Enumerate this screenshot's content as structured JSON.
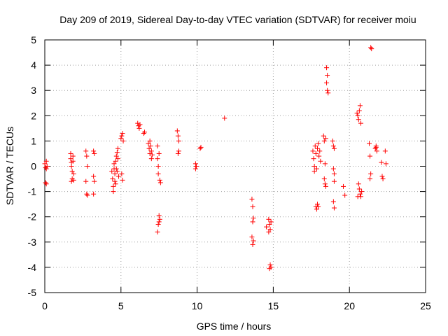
{
  "chart_data": {
    "type": "scatter",
    "title": "Day 209 of 2019, Sidereal Day-to-day VTEC variation (SDTVAR) for receiver moiu",
    "xlabel": "GPS time / hours",
    "ylabel": "SDTVAR / TECUs",
    "xlim": [
      0,
      25
    ],
    "ylim": [
      -5,
      5
    ],
    "xticks": [
      "0",
      "5",
      "10",
      "15",
      "20",
      "25"
    ],
    "yticks": [
      "-5",
      "-4",
      "-3",
      "-2",
      "-1",
      "0",
      "1",
      "2",
      "3",
      "4",
      "5"
    ],
    "grid": true,
    "marker": "+",
    "color": "#ff0000",
    "points": [
      [
        0.0,
        0.1
      ],
      [
        0.05,
        -0.05
      ],
      [
        0.1,
        0.2
      ],
      [
        0.1,
        -0.1
      ],
      [
        0.15,
        0.0
      ],
      [
        0.05,
        -0.65
      ],
      [
        0.1,
        -0.7
      ],
      [
        1.7,
        0.5
      ],
      [
        1.7,
        0.3
      ],
      [
        1.75,
        0.15
      ],
      [
        1.75,
        0.0
      ],
      [
        1.8,
        -0.2
      ],
      [
        1.8,
        -0.5
      ],
      [
        1.75,
        -0.6
      ],
      [
        1.85,
        0.4
      ],
      [
        1.9,
        -0.3
      ],
      [
        1.85,
        0.2
      ],
      [
        1.9,
        -0.55
      ],
      [
        2.7,
        0.6
      ],
      [
        2.75,
        0.4
      ],
      [
        2.8,
        0.0
      ],
      [
        2.7,
        -0.6
      ],
      [
        2.8,
        -1.15
      ],
      [
        2.75,
        -1.1
      ],
      [
        3.2,
        0.6
      ],
      [
        3.25,
        0.5
      ],
      [
        3.2,
        -0.4
      ],
      [
        3.25,
        -0.6
      ],
      [
        3.2,
        -1.1
      ],
      [
        4.4,
        -0.2
      ],
      [
        4.45,
        -0.5
      ],
      [
        4.5,
        -0.8
      ],
      [
        4.5,
        -1.0
      ],
      [
        4.55,
        0.1
      ],
      [
        4.6,
        -0.3
      ],
      [
        4.6,
        -0.6
      ],
      [
        4.65,
        0.2
      ],
      [
        4.7,
        0.4
      ],
      [
        4.7,
        -0.1
      ],
      [
        4.75,
        0.55
      ],
      [
        4.8,
        0.7
      ],
      [
        4.8,
        0.3
      ],
      [
        4.85,
        -0.4
      ],
      [
        4.55,
        -0.1
      ],
      [
        4.65,
        -0.7
      ],
      [
        4.75,
        -0.2
      ],
      [
        5.0,
        1.1
      ],
      [
        5.05,
        1.2
      ],
      [
        5.1,
        1.3
      ],
      [
        5.15,
        1.0
      ],
      [
        5.05,
        -0.3
      ],
      [
        5.1,
        -0.55
      ],
      [
        6.1,
        1.7
      ],
      [
        6.15,
        1.6
      ],
      [
        6.2,
        1.5
      ],
      [
        6.25,
        1.65
      ],
      [
        6.5,
        1.3
      ],
      [
        6.55,
        1.35
      ],
      [
        6.8,
        0.9
      ],
      [
        6.85,
        0.7
      ],
      [
        6.9,
        0.5
      ],
      [
        6.95,
        0.8
      ],
      [
        7.0,
        0.6
      ],
      [
        7.05,
        0.45
      ],
      [
        6.9,
        1.0
      ],
      [
        7.0,
        0.3
      ],
      [
        7.4,
        0.3
      ],
      [
        7.45,
        0.0
      ],
      [
        7.45,
        -0.3
      ],
      [
        7.4,
        0.8
      ],
      [
        7.5,
        0.5
      ],
      [
        7.55,
        -0.55
      ],
      [
        7.6,
        -0.65
      ],
      [
        7.5,
        -1.95
      ],
      [
        7.55,
        -2.1
      ],
      [
        7.45,
        -2.3
      ],
      [
        7.4,
        -2.6
      ],
      [
        7.5,
        -2.2
      ],
      [
        8.7,
        1.4
      ],
      [
        8.75,
        1.2
      ],
      [
        8.8,
        1.0
      ],
      [
        8.75,
        0.5
      ],
      [
        8.8,
        0.6
      ],
      [
        9.9,
        0.1
      ],
      [
        9.95,
        0.0
      ],
      [
        9.9,
        -0.1
      ],
      [
        10.2,
        0.7
      ],
      [
        10.25,
        0.75
      ],
      [
        11.8,
        1.9
      ],
      [
        13.6,
        -1.3
      ],
      [
        13.65,
        -1.6
      ],
      [
        13.7,
        -2.05
      ],
      [
        13.65,
        -2.2
      ],
      [
        13.6,
        -2.8
      ],
      [
        13.7,
        -2.95
      ],
      [
        13.65,
        -3.1
      ],
      [
        14.7,
        -2.1
      ],
      [
        14.75,
        -2.3
      ],
      [
        14.8,
        -2.5
      ],
      [
        14.7,
        -2.6
      ],
      [
        14.85,
        -2.2
      ],
      [
        14.8,
        -3.9
      ],
      [
        14.85,
        -4.0
      ],
      [
        14.75,
        -4.05
      ],
      [
        14.55,
        -2.4
      ],
      [
        17.6,
        0.6
      ],
      [
        17.65,
        0.3
      ],
      [
        17.7,
        0.0
      ],
      [
        17.7,
        -0.2
      ],
      [
        17.75,
        0.8
      ],
      [
        17.8,
        0.5
      ],
      [
        17.85,
        -0.1
      ],
      [
        17.9,
        0.7
      ],
      [
        17.95,
        0.9
      ],
      [
        18.0,
        0.4
      ],
      [
        18.05,
        0.6
      ],
      [
        18.1,
        0.2
      ],
      [
        17.8,
        -1.6
      ],
      [
        17.85,
        -1.7
      ],
      [
        17.9,
        -1.5
      ],
      [
        17.95,
        -1.6
      ],
      [
        18.3,
        1.2
      ],
      [
        18.35,
        1.0
      ],
      [
        18.4,
        0.1
      ],
      [
        18.35,
        -0.5
      ],
      [
        18.4,
        -0.7
      ],
      [
        18.45,
        -0.8
      ],
      [
        18.45,
        1.1
      ],
      [
        18.5,
        3.9
      ],
      [
        18.55,
        3.6
      ],
      [
        18.5,
        3.3
      ],
      [
        18.55,
        3.0
      ],
      [
        18.6,
        2.9
      ],
      [
        18.9,
        1.0
      ],
      [
        18.95,
        0.8
      ],
      [
        19.0,
        0.7
      ],
      [
        18.95,
        -0.1
      ],
      [
        19.0,
        -0.3
      ],
      [
        19.0,
        -0.6
      ],
      [
        18.95,
        -1.4
      ],
      [
        19.0,
        -1.65
      ],
      [
        19.6,
        -0.8
      ],
      [
        19.7,
        -1.15
      ],
      [
        20.5,
        2.1
      ],
      [
        20.55,
        2.0
      ],
      [
        20.6,
        1.85
      ],
      [
        20.65,
        2.2
      ],
      [
        20.7,
        2.4
      ],
      [
        20.75,
        1.7
      ],
      [
        20.6,
        -0.7
      ],
      [
        20.65,
        -0.9
      ],
      [
        20.7,
        -1.1
      ],
      [
        20.75,
        -1.2
      ],
      [
        20.8,
        -1.0
      ],
      [
        20.55,
        -1.2
      ],
      [
        21.3,
        0.9
      ],
      [
        21.35,
        0.4
      ],
      [
        21.4,
        -0.3
      ],
      [
        21.35,
        -0.5
      ],
      [
        21.4,
        4.7
      ],
      [
        21.45,
        4.65
      ],
      [
        21.7,
        0.7
      ],
      [
        21.75,
        0.8
      ],
      [
        21.8,
        0.6
      ],
      [
        21.75,
        0.75
      ],
      [
        22.1,
        0.15
      ],
      [
        22.15,
        -0.4
      ],
      [
        22.2,
        -0.5
      ],
      [
        22.35,
        0.6
      ],
      [
        22.4,
        0.1
      ]
    ]
  }
}
